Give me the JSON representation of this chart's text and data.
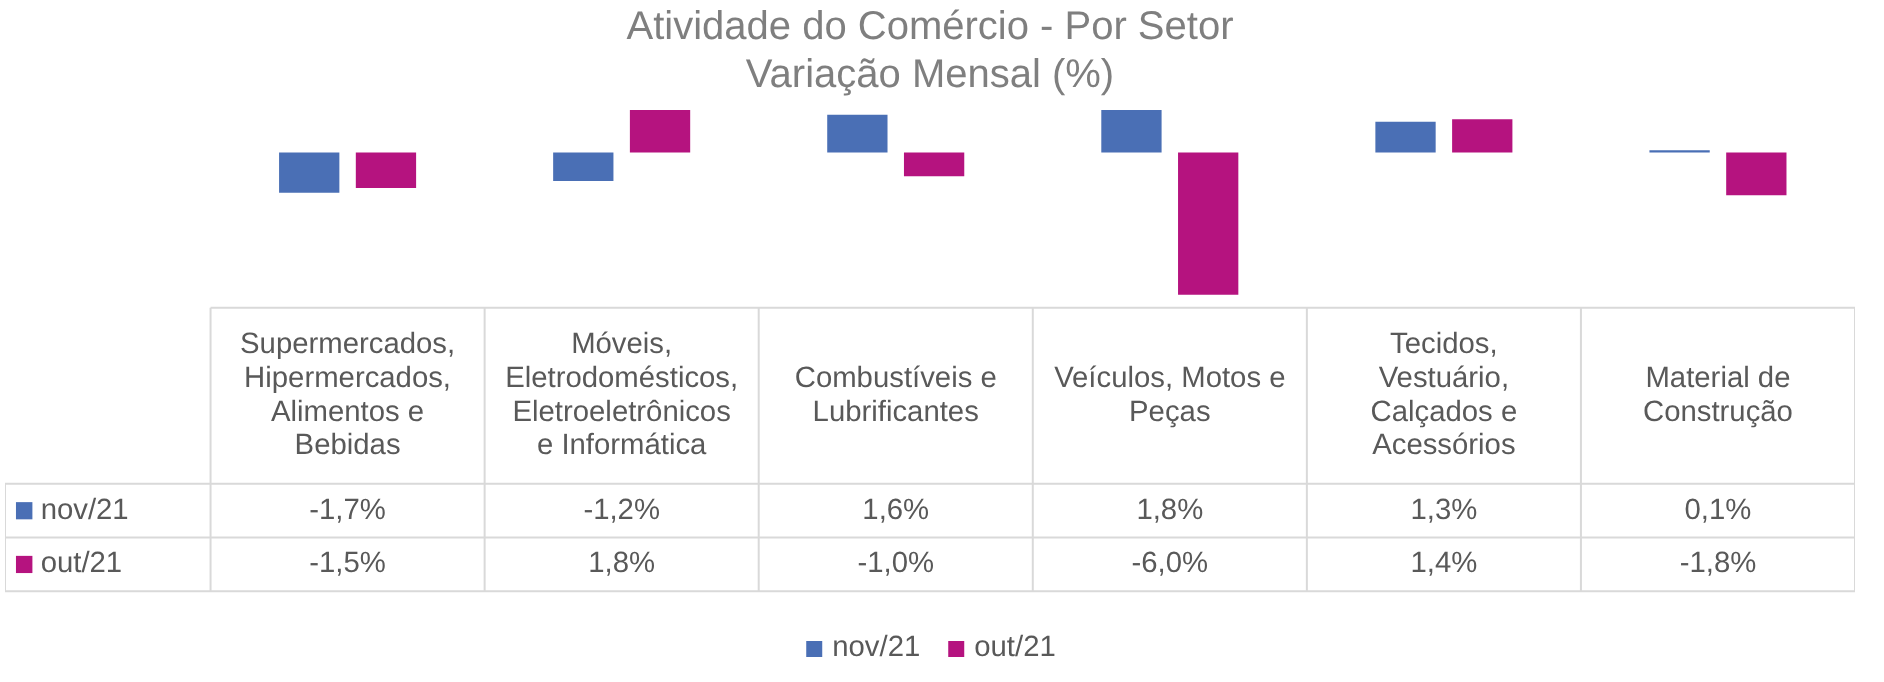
{
  "chart_data": {
    "type": "bar",
    "title": "Atividade do Comércio - Por Setor",
    "subtitle": "Variação Mensal (%)",
    "categories": [
      "Supermercados, Hipermercados, Alimentos e Bebidas",
      "Móveis, Eletrodomésticos, Eletroeletrônicos e Informática",
      "Combustíveis e Lubrificantes",
      "Veículos, Motos e Peças",
      "Tecidos, Vestuário, Calçados e Acessórios",
      "Material de Construção"
    ],
    "series": [
      {
        "name": "nov/21",
        "color": "#4a6fb5",
        "values": [
          -1.7,
          -1.2,
          1.6,
          1.8,
          1.3,
          0.1
        ],
        "value_labels": [
          "-1,7%",
          "-1,2%",
          "1,6%",
          "1,8%",
          "1,3%",
          "0,1%"
        ]
      },
      {
        "name": "out/21",
        "color": "#b5137f",
        "values": [
          -1.5,
          1.8,
          -1.0,
          -6.0,
          1.4,
          -1.8
        ],
        "value_labels": [
          "-1,5%",
          "1,8%",
          "-1,0%",
          "-6,0%",
          "1,4%",
          "-1,8%"
        ]
      }
    ],
    "legend": "bottom"
  }
}
